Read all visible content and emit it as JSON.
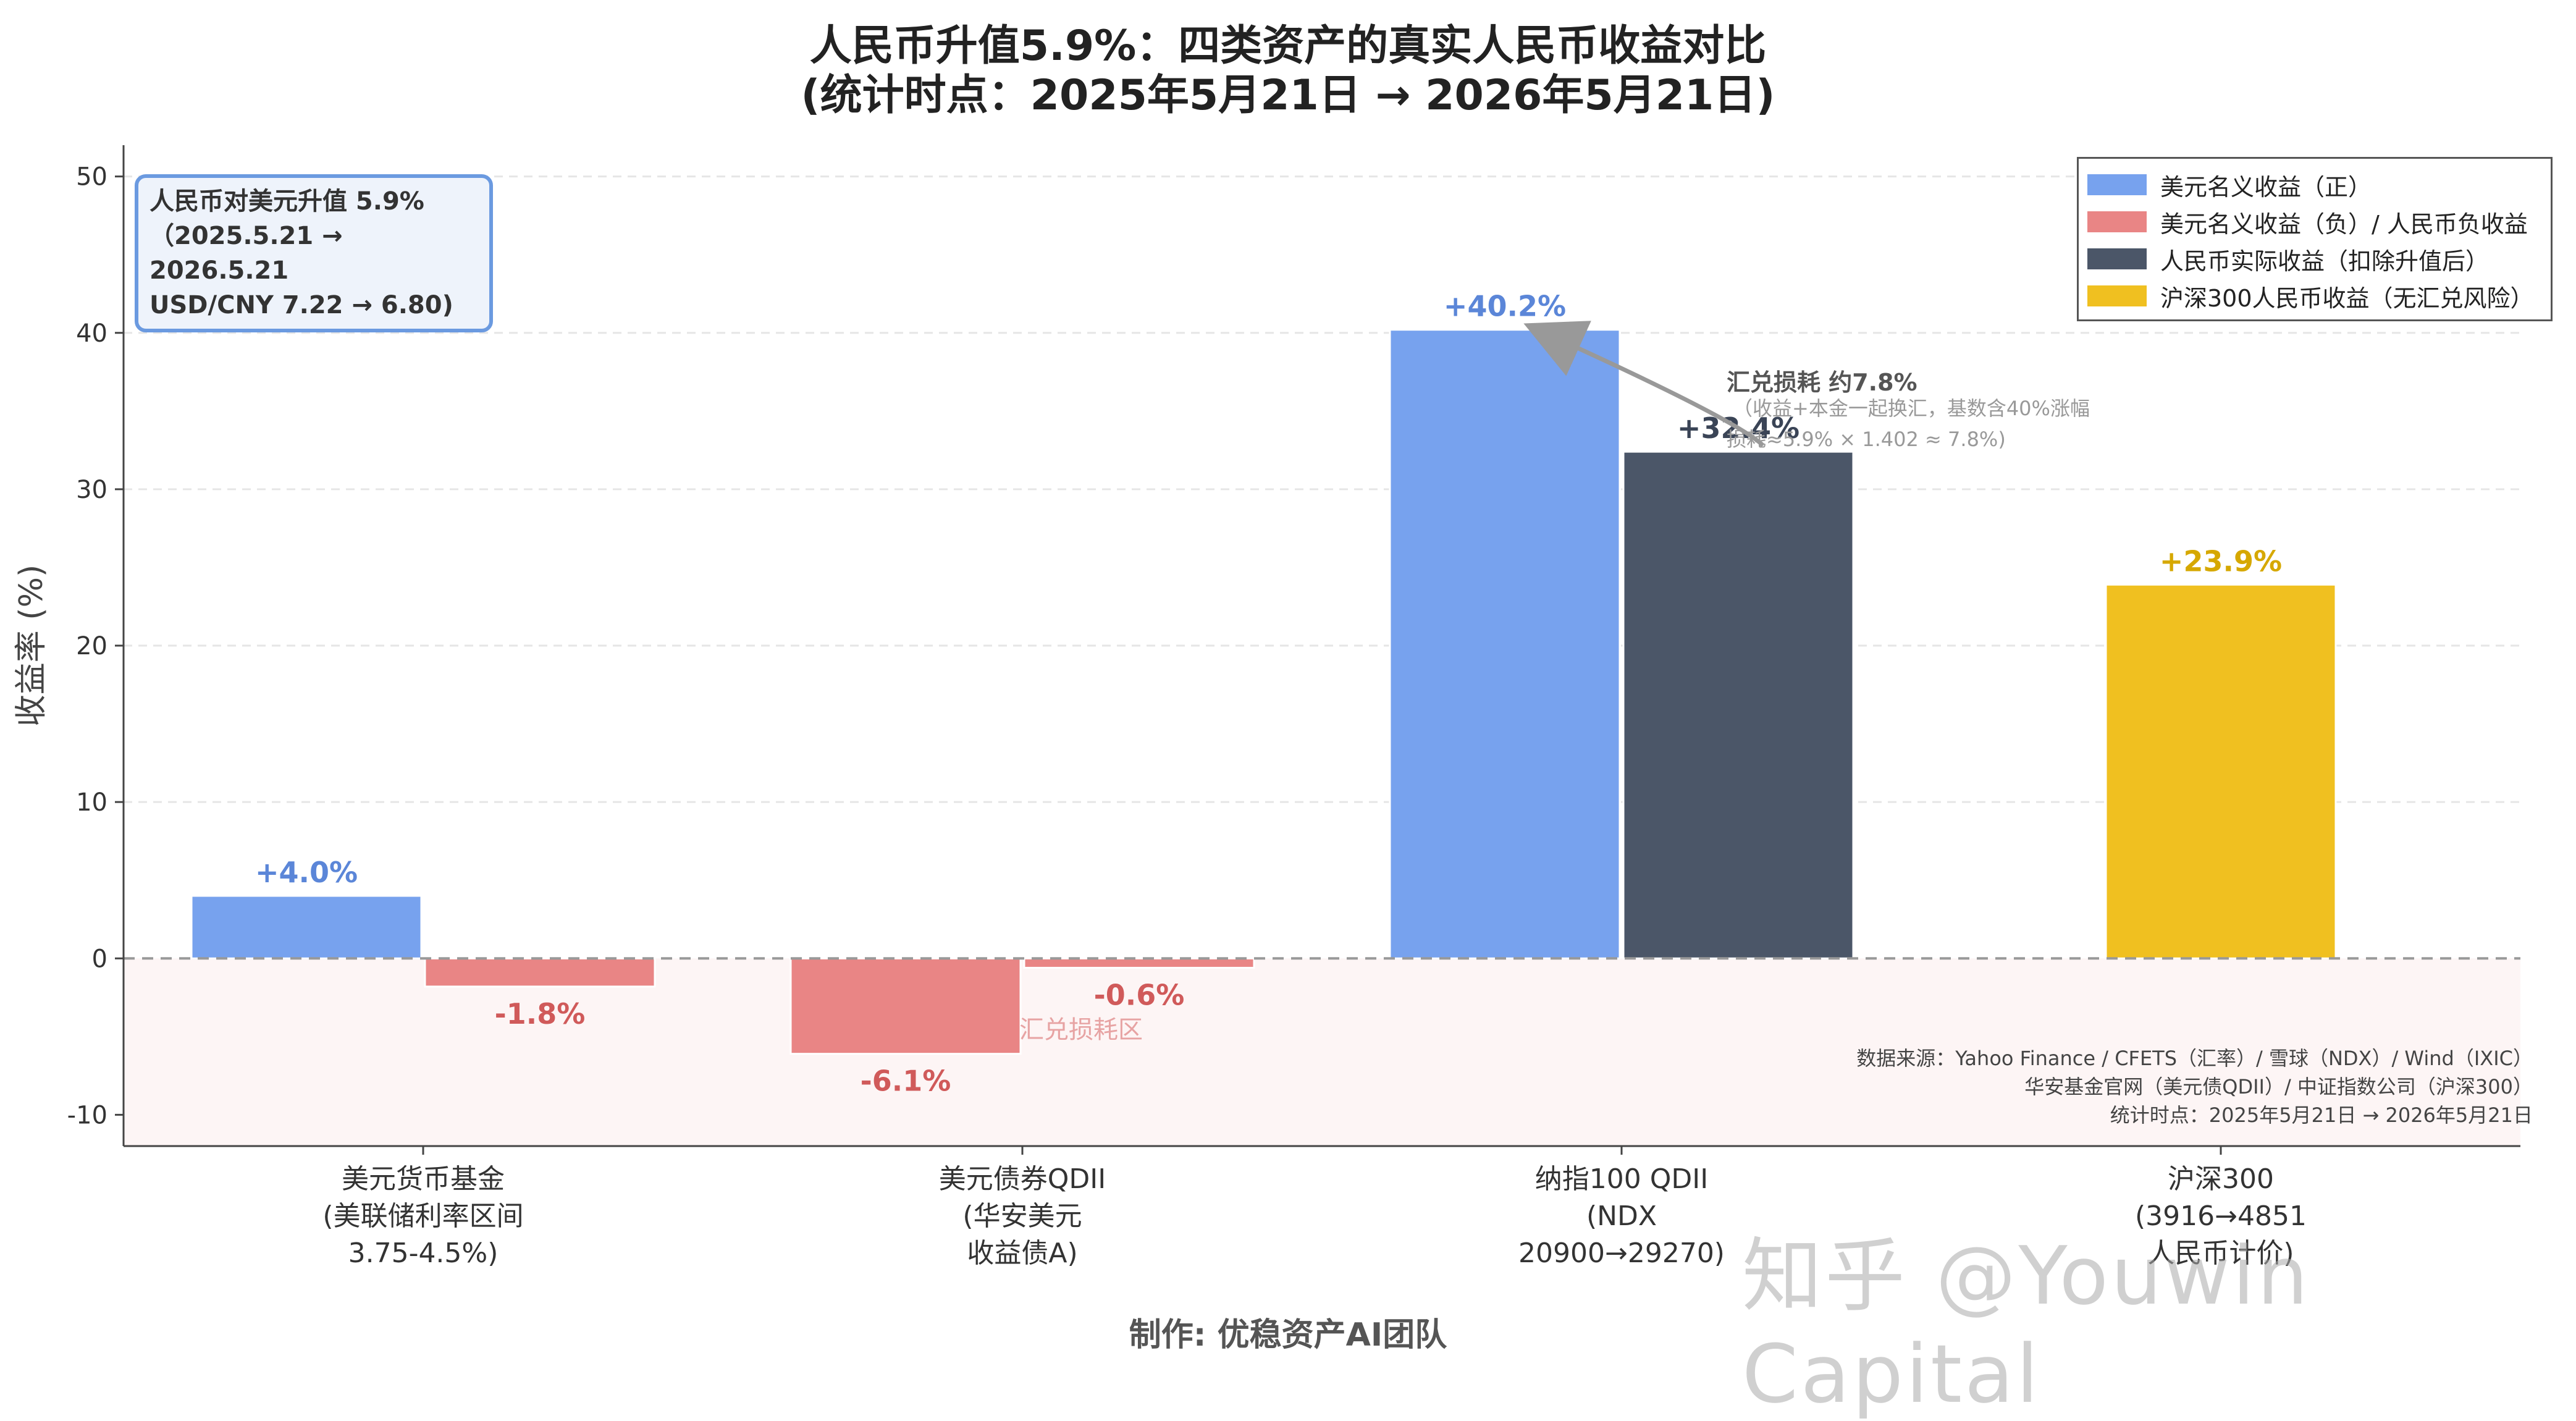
{
  "title": {
    "line1": "人民币升值5.9%：四类资产的真实人民币收益对比",
    "line2": "(统计时点：2025年5月21日 → 2026年5月21日)"
  },
  "maker": "制作: 优稳资产AI团队",
  "watermark": "知乎 @Youwin Capital",
  "info_box": {
    "line1": "人民币对美元升值 5.9%",
    "line2": "（2025.5.21 → 2026.5.21",
    "line3": "USD/CNY 7.22 → 6.80)"
  },
  "sources": [
    "数据来源：Yahoo Finance / CFETS（汇率）/ 雪球（NDX）/ Wind（IXIC）",
    "华安基金官网（美元债QDII）/ 中证指数公司（沪深300）",
    "统计时点：2025年5月21日 → 2026年5月21日"
  ],
  "colors": {
    "usd_positive": "#77a2ee",
    "negative": "#e98585",
    "rmb_real": "#4b5668",
    "csi300": "#f0c020"
  },
  "chart_data": {
    "type": "bar",
    "ylabel": "收益率 (%)",
    "ylim": [
      -12,
      52
    ],
    "yticks": [
      -10,
      0,
      10,
      20,
      30,
      40,
      50
    ],
    "grid": true,
    "legend_position": "top-right",
    "categories": [
      {
        "lines": [
          "美元货币基金",
          "(美联储利率区间",
          "3.75-4.5%)"
        ]
      },
      {
        "lines": [
          "美元债券QDII",
          "(华安美元",
          "收益债A)"
        ]
      },
      {
        "lines": [
          "纳指100 QDII",
          "(NDX",
          "20900→29270)"
        ]
      },
      {
        "lines": [
          "沪深300",
          "(3916→4851",
          "人民币计价)"
        ]
      }
    ],
    "legend": [
      {
        "label": "美元名义收益（正）",
        "color_key": "usd_positive"
      },
      {
        "label": "美元名义收益（负）/ 人民币负收益",
        "color_key": "negative"
      },
      {
        "label": "人民币实际收益（扣除升值后）",
        "color_key": "rmb_real"
      },
      {
        "label": "沪深300人民币收益（无汇兑风险）",
        "color_key": "csi300"
      }
    ],
    "bars": [
      {
        "category": 0,
        "slot": "left",
        "value": 4.0,
        "label": "+4.0%",
        "color_key": "usd_positive"
      },
      {
        "category": 0,
        "slot": "right",
        "value": -1.8,
        "label": "-1.8%",
        "color_key": "negative"
      },
      {
        "category": 1,
        "slot": "left",
        "value": -6.1,
        "label": "-6.1%",
        "color_key": "negative"
      },
      {
        "category": 1,
        "slot": "right",
        "value": -0.6,
        "label": "-0.6%",
        "color_key": "negative"
      },
      {
        "category": 2,
        "slot": "left",
        "value": 40.2,
        "label": "+40.2%",
        "color_key": "usd_positive"
      },
      {
        "category": 2,
        "slot": "right",
        "value": 32.4,
        "label": "+32.4%",
        "color_key": "rmb_real"
      },
      {
        "category": 3,
        "slot": "center",
        "value": 23.9,
        "label": "+23.9%",
        "color_key": "csi300"
      }
    ],
    "annotations": {
      "fx_loss_title": "汇兑损耗 约7.8%",
      "fx_loss_note1": "（收益+本金一起换汇，基数含40%涨幅",
      "fx_loss_note2": "损耗≈5.9% × 1.402 ≈ 7.8%)",
      "loss_zone": "汇兑损耗区"
    }
  }
}
